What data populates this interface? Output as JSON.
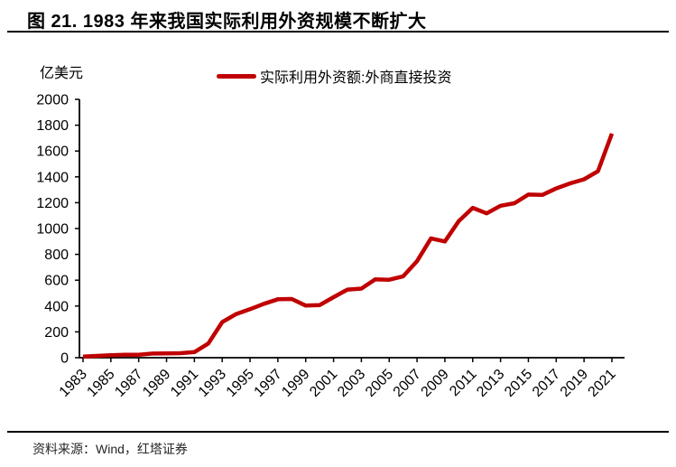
{
  "header": {
    "title": "图 21. 1983 年来我国实际利用外资规模不断扩大"
  },
  "chart": {
    "unit_label": "亿美元",
    "legend_label": "实际利用外资额:外商直接投资"
  },
  "chart_data": {
    "type": "line",
    "title": "图 21. 1983 年来我国实际利用外资规模不断扩大",
    "ylabel": "亿美元",
    "xlabel": "",
    "ylim": [
      0,
      2000
    ],
    "ytick_step": 200,
    "xtick_step": 2,
    "grid": false,
    "legend_position": "top-center",
    "x": [
      1983,
      1984,
      1985,
      1986,
      1987,
      1988,
      1989,
      1990,
      1991,
      1992,
      1993,
      1994,
      1995,
      1996,
      1997,
      1998,
      1999,
      2000,
      2001,
      2002,
      2003,
      2004,
      2005,
      2006,
      2007,
      2008,
      2009,
      2010,
      2011,
      2012,
      2013,
      2014,
      2015,
      2016,
      2017,
      2018,
      2019,
      2020,
      2021
    ],
    "series": [
      {
        "name": "实际利用外资额:外商直接投资",
        "color": "#C00000",
        "values": [
          9.2,
          14.2,
          19.6,
          22.4,
          23.1,
          31.9,
          33.9,
          34.9,
          43.7,
          110.1,
          275.2,
          337.7,
          375.2,
          417.3,
          452.6,
          454.6,
          403.2,
          407.2,
          468.8,
          527.4,
          535.1,
          606.3,
          603.3,
          630.2,
          747.7,
          924.0,
          900.3,
          1057.4,
          1160.1,
          1117.2,
          1175.9,
          1195.6,
          1262.7,
          1260.0,
          1310.4,
          1349.7,
          1381.4,
          1443.7,
          1734.8
        ]
      }
    ]
  },
  "footer": {
    "source": "资料来源：Wind，红塔证券"
  }
}
